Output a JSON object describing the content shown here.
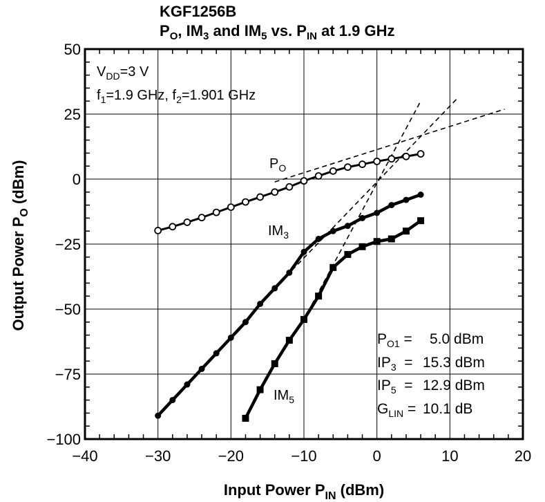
{
  "chart_data": {
    "type": "line",
    "title_main": "KGF1256B",
    "title_sub": {
      "p": "P",
      "p_sub": "O",
      "t1": ", IM",
      "t1_sub": "3",
      "t2": " and IM",
      "t2_sub": "5",
      "t3": " vs. P",
      "t3_sub": "IN",
      "t4": " at 1.9 GHz"
    },
    "xlabel": {
      "main": "Input Power  P",
      "sub": "IN",
      "tail": "  (dBm)"
    },
    "ylabel": {
      "main": "Output Power  P",
      "sub": "O",
      "tail": "  (dBm)"
    },
    "xlim": [
      -40,
      20
    ],
    "ylim": [
      -100,
      50
    ],
    "x_ticks": [
      "−40",
      "−30",
      "−20",
      "−10",
      "0",
      "10",
      "20"
    ],
    "y_ticks": [
      "50",
      "25",
      "0",
      "−25",
      "−50",
      "−75",
      "−100"
    ],
    "x_tick_values": [
      -40,
      -30,
      -20,
      -10,
      0,
      10,
      20
    ],
    "y_tick_values": [
      50,
      25,
      0,
      -25,
      -50,
      -75,
      -100
    ],
    "grid": true,
    "conditions": {
      "vdd": {
        "a": "V",
        "b": "DD",
        "c": "=3 V"
      },
      "freq": {
        "a": "f",
        "b": "1",
        "c": "=1.9 GHz, f",
        "d": "2",
        "e": "=1.901 GHz"
      }
    },
    "series": [
      {
        "name": "P",
        "name_sub": "O",
        "marker": "circle-open",
        "x": [
          -30,
          -28,
          -26,
          -24,
          -22,
          -20,
          -18,
          -16,
          -14,
          -12,
          -10,
          -8,
          -6,
          -4,
          -2,
          0,
          2,
          4,
          6
        ],
        "y": [
          -19.8,
          -18.3,
          -16.6,
          -14.8,
          -12.8,
          -10.8,
          -8.8,
          -6.9,
          -5.0,
          -3.0,
          -0.7,
          1.2,
          3.1,
          4.6,
          5.7,
          6.8,
          7.8,
          8.7,
          9.7
        ]
      },
      {
        "name": "IM",
        "name_sub": "3",
        "marker": "circle-filled",
        "x": [
          -30,
          -28,
          -26,
          -24,
          -22,
          -20,
          -18,
          -16,
          -14,
          -12,
          -10,
          -8,
          -6,
          -4,
          -2,
          0,
          2,
          4,
          6
        ],
        "y": [
          -91,
          -85,
          -79,
          -73,
          -67,
          -61,
          -55,
          -48,
          -42,
          -36,
          -28,
          -23,
          -20,
          -18,
          -15,
          -13,
          -10,
          -8,
          -6
        ]
      },
      {
        "name": "IM",
        "name_sub": "5",
        "marker": "square-filled",
        "x": [
          -18,
          -16,
          -14,
          -12,
          -10,
          -8,
          -6,
          -4,
          -2,
          0,
          2,
          4,
          6
        ],
        "y": [
          -92,
          -81,
          -71,
          -62,
          -54,
          -45,
          -34,
          -29,
          -26,
          -24,
          -23,
          -20,
          -16
        ]
      }
    ],
    "extrapolations": [
      {
        "x": [
          -14,
          17.5
        ],
        "y": [
          -1.1,
          26.9
        ]
      },
      {
        "x": [
          -14,
          11
        ],
        "y": [
          -42,
          31
        ]
      },
      {
        "x": [
          -10,
          6
        ],
        "y": [
          -54,
          30
        ]
      }
    ],
    "summary": [
      {
        "label": "P",
        "sub": "O1",
        "eq": " = ",
        "value": "5.0 dBm"
      },
      {
        "label": "IP",
        "sub": "3",
        "eq": "  = ",
        "value": "15.3 dBm"
      },
      {
        "label": "IP",
        "sub": "5",
        "eq": "  = ",
        "value": "12.9 dBm"
      },
      {
        "label": "G",
        "sub": "LIN",
        "eq": " = ",
        "value": "10.1 dB"
      }
    ]
  }
}
